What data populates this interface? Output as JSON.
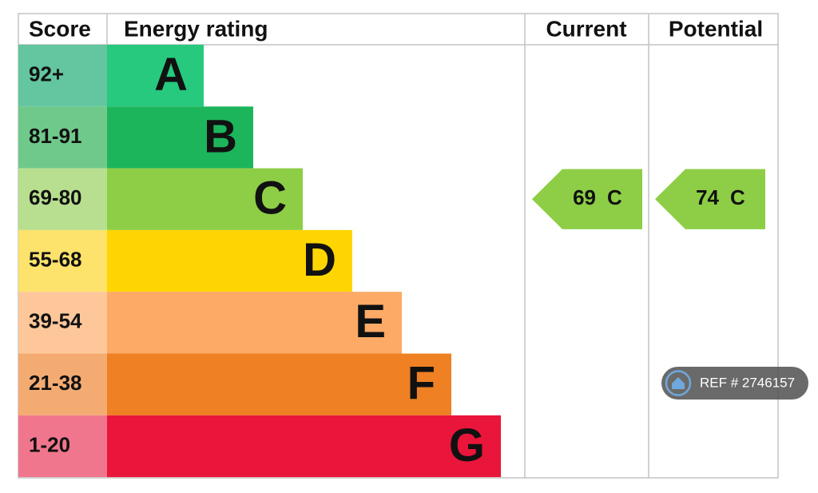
{
  "header": {
    "score": "Score",
    "rating": "Energy rating",
    "current": "Current",
    "potential": "Potential"
  },
  "bands": [
    {
      "score": "92+",
      "letter": "A",
      "color": "#26c97e",
      "score_color": "#63c6a0"
    },
    {
      "score": "81-91",
      "letter": "B",
      "color": "#1db55b",
      "score_color": "#6fc98a"
    },
    {
      "score": "69-80",
      "letter": "C",
      "color": "#8dce46",
      "score_color": "#b7df8f"
    },
    {
      "score": "55-68",
      "letter": "D",
      "color": "#ffd500",
      "score_color": "#fde36b"
    },
    {
      "score": "39-54",
      "letter": "E",
      "color": "#fcaa65",
      "score_color": "#fdc79a"
    },
    {
      "score": "21-38",
      "letter": "F",
      "color": "#ef8023",
      "score_color": "#f3ab72"
    },
    {
      "score": "1-20",
      "letter": "G",
      "color": "#e9153b",
      "score_color": "#f0768e"
    }
  ],
  "current": {
    "score": 69,
    "band": "C"
  },
  "potential": {
    "score": 74,
    "band": "C"
  },
  "ref": "REF # 2746157"
}
